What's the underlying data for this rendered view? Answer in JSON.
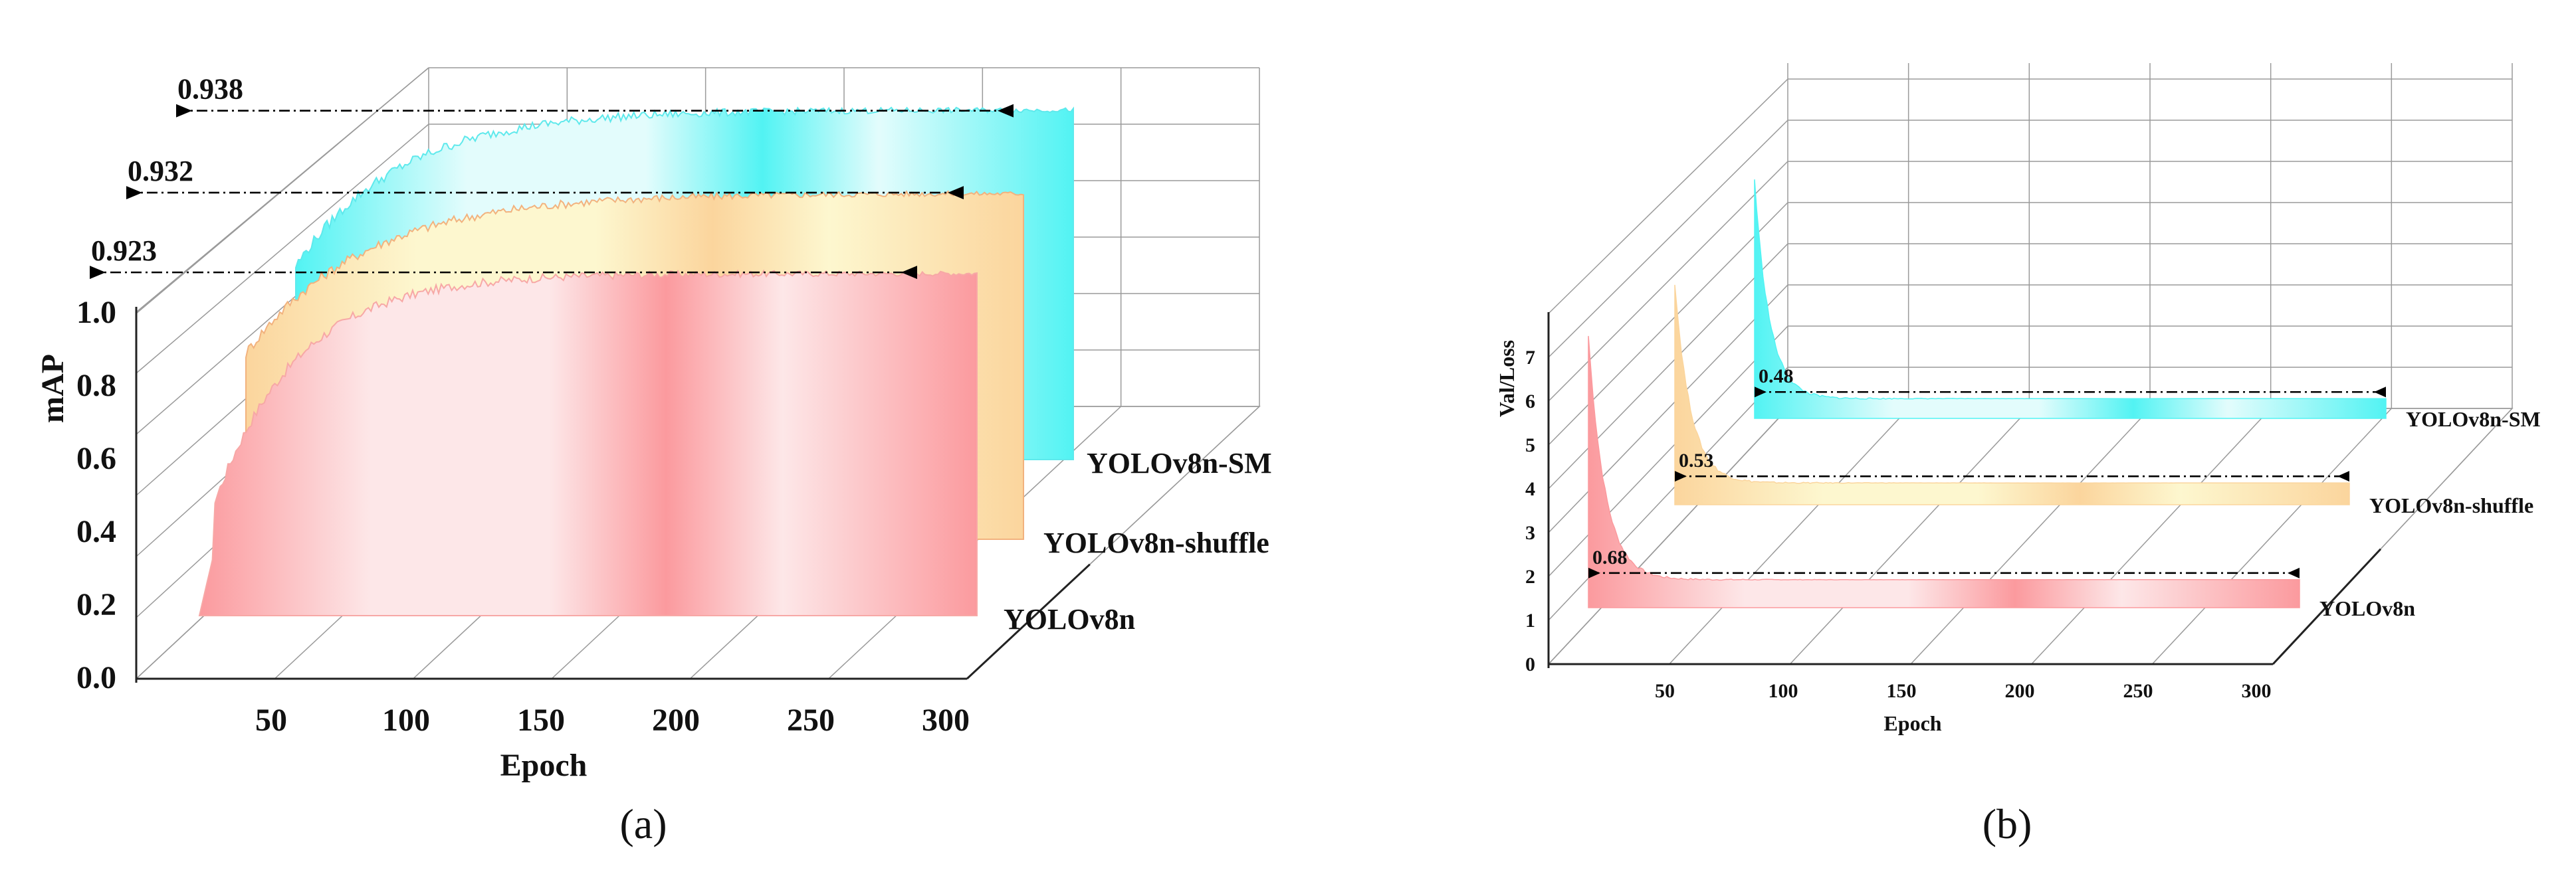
{
  "chart_data": [
    {
      "type": "area",
      "panel_label": "a",
      "caption": "(a)",
      "xlabel": "Epoch",
      "ylabel": "mAP",
      "xticks": [
        "50",
        "100",
        "150",
        "200",
        "250",
        "300"
      ],
      "yticks": [
        "0.0",
        "0.2",
        "0.4",
        "0.6",
        "0.8",
        "1.0"
      ],
      "xlim": [
        1,
        300
      ],
      "ylim": [
        0,
        1.0
      ],
      "series": [
        {
          "name": "YOLOv8n",
          "final": 0.923,
          "final_label": "0.923",
          "color": "#fb9a9e",
          "light": "#fde7e8",
          "edge": "#f7a8a6",
          "start": 0.18,
          "plateau": 0.92,
          "rise": 32
        },
        {
          "name": "YOLOv8n-shuffle",
          "final": 0.932,
          "final_label": "0.932",
          "color": "#fbd59d",
          "light": "#fdf7cf",
          "edge": "#f2b27e",
          "start": 0.5,
          "plateau": 0.93,
          "rise": 45
        },
        {
          "name": "YOLOv8n-SM",
          "final": 0.938,
          "final_label": "0.938",
          "color": "#52f3f3",
          "light": "#e3fcfc",
          "edge": "#5ee9ec",
          "start": 0.52,
          "plateau": 0.94,
          "rise": 40
        }
      ]
    },
    {
      "type": "area",
      "panel_label": "b",
      "caption": "(b)",
      "xlabel": "Epoch",
      "ylabel": "Val/Loss",
      "xticks": [
        "50",
        "100",
        "150",
        "200",
        "250",
        "300"
      ],
      "yticks": [
        "0",
        "1",
        "2",
        "3",
        "4",
        "5",
        "6",
        "7"
      ],
      "xlim": [
        1,
        300
      ],
      "ylim": [
        0,
        7.5
      ],
      "series": [
        {
          "name": "YOLOv8n",
          "final": 0.68,
          "final_label": "0.68",
          "color": "#fb9a9e",
          "light": "#fde7e8",
          "peak": 6.6
        },
        {
          "name": "YOLOv8n-shuffle",
          "final": 0.53,
          "final_label": "0.53",
          "color": "#fbd59d",
          "light": "#fdf7cf",
          "peak": 5.4
        },
        {
          "name": "YOLOv8n-SM",
          "final": 0.48,
          "final_label": "0.48",
          "color": "#52f3f3",
          "light": "#e3fcfc",
          "peak": 5.8
        }
      ]
    }
  ]
}
